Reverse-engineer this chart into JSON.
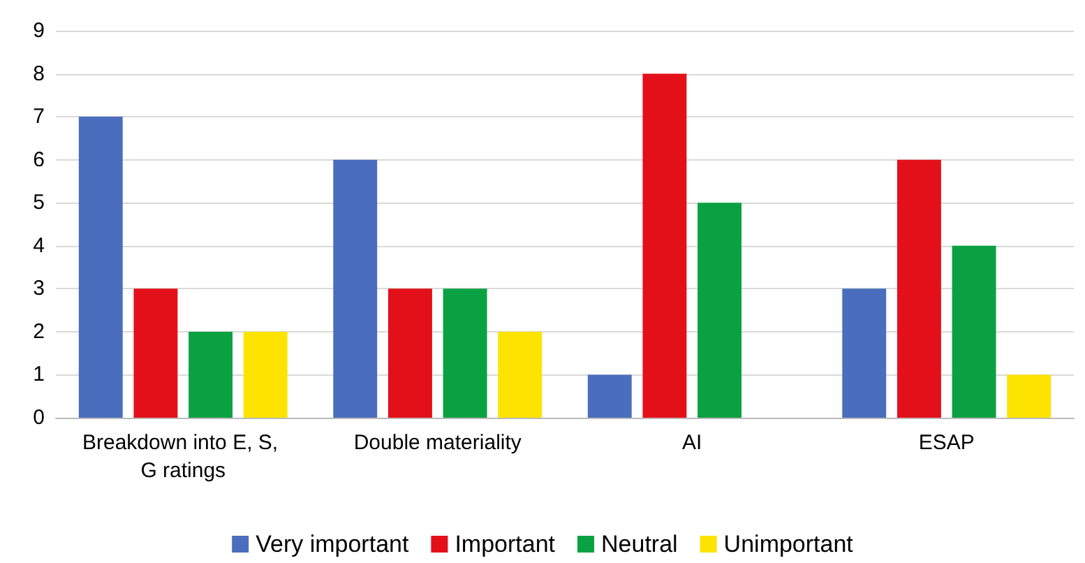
{
  "chart_data": {
    "type": "bar",
    "categories": [
      "Breakdown into E, S, G ratings",
      "Double materiality",
      "AI",
      "ESAP"
    ],
    "series": [
      {
        "name": "Very important",
        "color": "#4a6ebd",
        "values": [
          7,
          6,
          1,
          3
        ]
      },
      {
        "name": "Important",
        "color": "#e3101a",
        "values": [
          3,
          3,
          8,
          6
        ]
      },
      {
        "name": "Neutral",
        "color": "#0aa142",
        "values": [
          2,
          3,
          5,
          4
        ]
      },
      {
        "name": "Unimportant",
        "color": "#fce300",
        "values": [
          2,
          2,
          0,
          1
        ]
      }
    ],
    "ylim": [
      0,
      9
    ],
    "yticks": [
      0,
      1,
      2,
      3,
      4,
      5,
      6,
      7,
      8,
      9
    ],
    "grid": "y",
    "legend": "bottom"
  }
}
